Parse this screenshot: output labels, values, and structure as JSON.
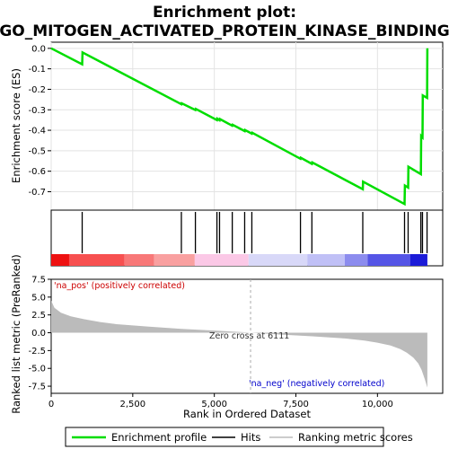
{
  "title_line1": "Enrichment plot:",
  "title_line2": "GO_MITOGEN_ACTIVATED_PROTEIN_KINASE_BINDING",
  "colors": {
    "es_line": "#00dd00",
    "hits": "#000000",
    "pos_label": "#cc0000",
    "neg_label": "#0000cc",
    "metric_fill": "#bbbbbb",
    "zero_line": "#bbbbbb"
  },
  "chart_data": {
    "type": "line",
    "xlabel": "Rank in Ordered Dataset",
    "xlim": [
      0,
      12000
    ],
    "xticks": [
      0,
      2500,
      5000,
      7500,
      10000
    ],
    "xtick_labels": [
      "0",
      "2,500",
      "5,000",
      "7,500",
      "10,000"
    ],
    "es_panel": {
      "ylabel": "Enrichment score (ES)",
      "ylim": [
        -0.79,
        0.03
      ],
      "yticks": [
        0.0,
        -0.1,
        -0.2,
        -0.3,
        -0.4,
        -0.5,
        -0.6,
        -0.7
      ],
      "ytick_labels": [
        "0.0",
        "-0.1",
        "-0.2",
        "-0.3",
        "-0.4",
        "-0.5",
        "-0.6",
        "-0.7"
      ],
      "series_name": "Enrichment profile",
      "x": [
        0,
        950,
        960,
        3990,
        4000,
        4420,
        4430,
        5080,
        5090,
        5160,
        5170,
        5550,
        5560,
        5930,
        5940,
        6150,
        6160,
        7640,
        7650,
        7990,
        8000,
        9550,
        9560,
        10830,
        10840,
        10940,
        10950,
        11330,
        11340,
        11380,
        11390,
        11520,
        11530
      ],
      "y": [
        0.0,
        -0.078,
        -0.02,
        -0.273,
        -0.268,
        -0.301,
        -0.296,
        -0.35,
        -0.343,
        -0.351,
        -0.345,
        -0.378,
        -0.373,
        -0.404,
        -0.399,
        -0.417,
        -0.412,
        -0.539,
        -0.534,
        -0.564,
        -0.557,
        -0.688,
        -0.651,
        -0.76,
        -0.67,
        -0.68,
        -0.578,
        -0.614,
        -0.428,
        -0.435,
        -0.23,
        -0.242,
        0.0
      ]
    },
    "hits_panel": {
      "hit_ranks": [
        950,
        3990,
        4420,
        5080,
        5160,
        5550,
        5930,
        6150,
        7640,
        7990,
        9550,
        10830,
        10940,
        11330,
        11380,
        11520
      ]
    },
    "metric_panel": {
      "ylabel": "Ranked list metric (PreRanked)",
      "ylim": [
        -8.5,
        7.5
      ],
      "yticks": [
        7.5,
        5.0,
        2.5,
        0.0,
        -2.5,
        -5.0,
        -7.5
      ],
      "ytick_labels": [
        "7.5",
        "5.0",
        "2.5",
        "0.0",
        "-2.5",
        "-5.0",
        "-7.5"
      ],
      "x": [
        0,
        100,
        300,
        600,
        1000,
        1500,
        2000,
        3000,
        4000,
        5000,
        6000,
        6111,
        7000,
        8000,
        9000,
        9600,
        10000,
        10400,
        10700,
        10900,
        11100,
        11250,
        11350,
        11450,
        11530
      ],
      "y": [
        4.5,
        3.5,
        2.8,
        2.3,
        1.9,
        1.5,
        1.2,
        0.85,
        0.55,
        0.3,
        0.05,
        0.0,
        -0.25,
        -0.5,
        -0.8,
        -1.1,
        -1.4,
        -1.8,
        -2.3,
        -2.8,
        -3.5,
        -4.3,
        -5.2,
        -6.5,
        -7.7
      ]
    },
    "pos_label": "'na_pos' (positively correlated)",
    "neg_label": "'na_neg' (negatively correlated)",
    "zero_cross_label": "Zero cross at 6111",
    "zero_cross": 6111,
    "colorbar": [
      {
        "from": 0,
        "to": 550,
        "color": "#ee1111"
      },
      {
        "from": 550,
        "to": 2250,
        "color": "#f75050"
      },
      {
        "from": 2250,
        "to": 3150,
        "color": "#f87878"
      },
      {
        "from": 3150,
        "to": 4400,
        "color": "#f9a0a0"
      },
      {
        "from": 4400,
        "to": 6050,
        "color": "#fbc8e6"
      },
      {
        "from": 6050,
        "to": 7850,
        "color": "#d8d8f8"
      },
      {
        "from": 7850,
        "to": 9000,
        "color": "#c0c0f6"
      },
      {
        "from": 9000,
        "to": 9700,
        "color": "#8c8cee"
      },
      {
        "from": 9700,
        "to": 11000,
        "color": "#5555e6"
      },
      {
        "from": 11000,
        "to": 11530,
        "color": "#1c1cd8"
      }
    ]
  },
  "legend": {
    "items": [
      {
        "label": "Enrichment profile",
        "color": "#00dd00"
      },
      {
        "label": "Hits",
        "color": "#000000"
      },
      {
        "label": "Ranking metric scores",
        "color": "#bbbbbb"
      }
    ]
  }
}
